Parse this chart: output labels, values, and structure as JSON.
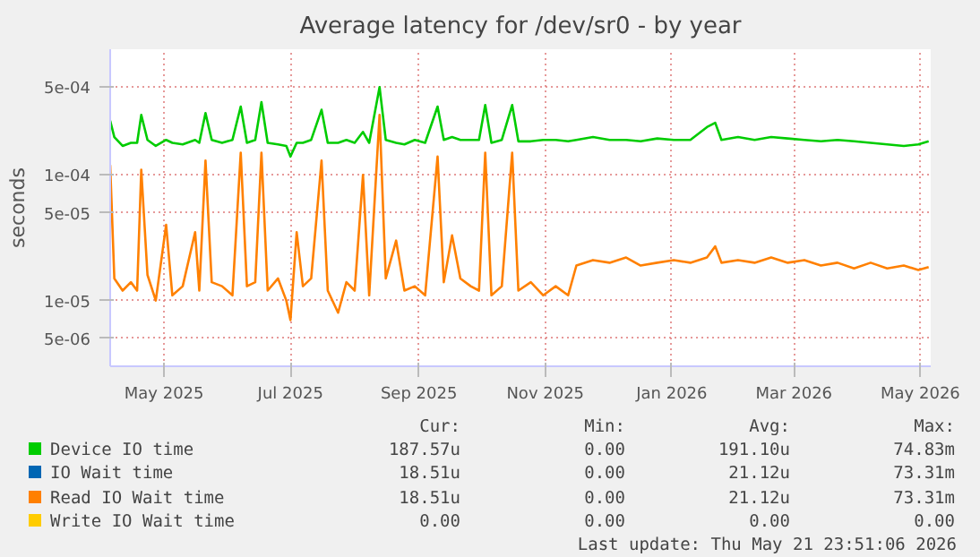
{
  "chart_data": {
    "type": "line",
    "title": "Average latency for /dev/sr0 - by year",
    "ylabel": "seconds",
    "log": "y",
    "grid": true,
    "legend": "bottom",
    "xlim": [
      "2025-04-19",
      "2026-05-20"
    ],
    "xticks": [
      {
        "value": "2025-05-15",
        "label": "May 2025"
      },
      {
        "value": "2025-07-15",
        "label": "Jul 2025"
      },
      {
        "value": "2025-09-15",
        "label": "Sep 2025"
      },
      {
        "value": "2025-11-15",
        "label": "Nov 2025"
      },
      {
        "value": "2026-01-15",
        "label": "Jan 2026"
      },
      {
        "value": "2026-03-15",
        "label": "Mar 2026"
      },
      {
        "value": "2026-05-15",
        "label": "May 2026"
      }
    ],
    "ylim": [
      3e-06,
      0.001
    ],
    "yticks": [
      {
        "value": 5e-06,
        "label": "5e-06"
      },
      {
        "value": 1e-05,
        "label": "1e-05"
      },
      {
        "value": 5e-05,
        "label": "5e-05"
      },
      {
        "value": 0.0001,
        "label": "1e-04"
      },
      {
        "value": 0.0005,
        "label": "5e-04"
      }
    ],
    "x": [
      "2025-04-19",
      "2025-04-21",
      "2025-04-25",
      "2025-04-29",
      "2025-05-02",
      "2025-05-04",
      "2025-05-07",
      "2025-05-11",
      "2025-05-16",
      "2025-05-19",
      "2025-05-24",
      "2025-05-30",
      "2025-06-01",
      "2025-06-04",
      "2025-06-07",
      "2025-06-12",
      "2025-06-17",
      "2025-06-21",
      "2025-06-24",
      "2025-06-28",
      "2025-07-01",
      "2025-07-04",
      "2025-07-09",
      "2025-07-13",
      "2025-07-15",
      "2025-07-18",
      "2025-07-21",
      "2025-07-25",
      "2025-07-30",
      "2025-08-02",
      "2025-08-07",
      "2025-08-11",
      "2025-08-15",
      "2025-08-19",
      "2025-08-22",
      "2025-08-27",
      "2025-08-30",
      "2025-09-04",
      "2025-09-08",
      "2025-09-13",
      "2025-09-18",
      "2025-09-24",
      "2025-09-27",
      "2025-10-01",
      "2025-10-05",
      "2025-10-10",
      "2025-10-14",
      "2025-10-17",
      "2025-10-20",
      "2025-10-25",
      "2025-10-30",
      "2025-11-02",
      "2025-11-08",
      "2025-11-14",
      "2025-11-20",
      "2025-11-26",
      "2025-11-30",
      "2025-12-08",
      "2025-12-16",
      "2025-12-24",
      "2025-12-31",
      "2026-01-08",
      "2026-01-16",
      "2026-01-24",
      "2026-02-01",
      "2026-02-05",
      "2026-02-08",
      "2026-02-16",
      "2026-02-24",
      "2026-03-04",
      "2026-03-12",
      "2026-03-20",
      "2026-03-28",
      "2026-04-05",
      "2026-04-13",
      "2026-04-21",
      "2026-04-29",
      "2026-05-07",
      "2026-05-14",
      "2026-05-19"
    ],
    "series": [
      {
        "name": "Device IO time",
        "color": "#00cc00",
        "values": [
          0.00027,
          0.0002,
          0.00017,
          0.00018,
          0.00018,
          0.0003,
          0.00019,
          0.00017,
          0.00019,
          0.00018,
          0.000175,
          0.00019,
          0.00018,
          0.00031,
          0.00019,
          0.00018,
          0.00019,
          0.00035,
          0.00018,
          0.00019,
          0.00038,
          0.00018,
          0.000175,
          0.00017,
          0.00014,
          0.00018,
          0.00018,
          0.00019,
          0.00033,
          0.00018,
          0.00018,
          0.00019,
          0.00018,
          0.00022,
          0.00018,
          0.0005,
          0.00019,
          0.00018,
          0.000175,
          0.00019,
          0.00018,
          0.00035,
          0.00019,
          0.0002,
          0.00019,
          0.00019,
          0.00019,
          0.00036,
          0.00018,
          0.00019,
          0.00036,
          0.000185,
          0.000185,
          0.00019,
          0.00019,
          0.000185,
          0.00019,
          0.0002,
          0.00019,
          0.00019,
          0.000185,
          0.000195,
          0.00019,
          0.00019,
          0.00024,
          0.00026,
          0.00019,
          0.0002,
          0.00019,
          0.0002,
          0.000195,
          0.00019,
          0.000185,
          0.00019,
          0.000185,
          0.00018,
          0.000175,
          0.00017,
          0.000175,
          0.000185
        ]
      },
      {
        "name": "IO Wait time",
        "color": "#0066b3",
        "values": [
          null,
          null,
          null,
          null,
          null,
          null,
          null,
          null,
          null,
          null,
          null,
          null,
          null,
          null,
          null,
          null,
          null,
          null,
          null,
          null,
          null,
          null,
          null,
          null,
          null,
          null,
          null,
          null,
          null,
          null,
          null,
          null,
          null,
          null,
          null,
          null,
          null,
          null,
          null,
          null,
          null,
          null,
          null,
          null,
          null,
          null,
          null,
          null,
          null,
          null,
          null,
          null,
          null,
          null,
          null,
          null,
          null,
          null,
          null,
          null,
          null,
          null,
          null,
          null,
          null,
          null,
          null,
          null,
          null,
          null,
          null,
          null,
          null,
          null,
          null,
          null,
          null,
          null,
          null,
          null
        ]
      },
      {
        "name": "Read IO Wait time",
        "color": "#ff8000",
        "values": [
          0.00012,
          1.5e-05,
          1.2e-05,
          1.4e-05,
          1.2e-05,
          0.00011,
          1.6e-05,
          1e-05,
          4e-05,
          1.1e-05,
          1.3e-05,
          3.5e-05,
          1.2e-05,
          0.00013,
          1.4e-05,
          1.3e-05,
          1.1e-05,
          0.00015,
          1.3e-05,
          1.4e-05,
          0.00015,
          1.2e-05,
          1.5e-05,
          1e-05,
          7e-06,
          3.5e-05,
          1.3e-05,
          1.5e-05,
          0.00013,
          1.2e-05,
          8e-06,
          1.4e-05,
          1.2e-05,
          0.0001,
          1.1e-05,
          0.0003,
          1.5e-05,
          3e-05,
          1.2e-05,
          1.3e-05,
          1.1e-05,
          0.00014,
          1.4e-05,
          3.3e-05,
          1.5e-05,
          1.3e-05,
          1.2e-05,
          0.00015,
          1.1e-05,
          1.3e-05,
          0.00015,
          1.2e-05,
          1.4e-05,
          1.1e-05,
          1.3e-05,
          1.1e-05,
          1.9e-05,
          2.1e-05,
          2e-05,
          2.2e-05,
          1.9e-05,
          2e-05,
          2.1e-05,
          2e-05,
          2.2e-05,
          2.7e-05,
          2e-05,
          2.1e-05,
          2e-05,
          2.2e-05,
          2e-05,
          2.1e-05,
          1.9e-05,
          2e-05,
          1.8e-05,
          2e-05,
          1.8e-05,
          1.9e-05,
          1.75e-05,
          1.85e-05
        ]
      },
      {
        "name": "Write IO Wait time",
        "color": "#ffcc00",
        "values": [
          null,
          null,
          null,
          null,
          null,
          null,
          null,
          null,
          null,
          null,
          null,
          null,
          null,
          null,
          null,
          null,
          null,
          null,
          null,
          null,
          null,
          null,
          null,
          null,
          null,
          null,
          null,
          null,
          null,
          null,
          null,
          null,
          null,
          null,
          null,
          null,
          null,
          null,
          null,
          null,
          null,
          null,
          null,
          null,
          null,
          null,
          null,
          null,
          null,
          null,
          null,
          null,
          null,
          null,
          null,
          null,
          null,
          null,
          null,
          null,
          null,
          null,
          null,
          null,
          null,
          null,
          null,
          null,
          null,
          null,
          null,
          null,
          null,
          null,
          null,
          null,
          null,
          null,
          null,
          null
        ]
      }
    ],
    "annotations": [
      "Cur:",
      "Min:",
      "Avg:",
      "Max:",
      "187.57u",
      "0.00",
      "191.10u",
      "74.83m",
      "18.51u",
      "0.00",
      "21.12u",
      "73.31m",
      "18.51u",
      "0.00",
      "21.12u",
      "73.31m",
      "0.00",
      "0.00",
      "0.00",
      "0.00",
      "Last update: Thu May 21 23:51:06 2026"
    ]
  }
}
